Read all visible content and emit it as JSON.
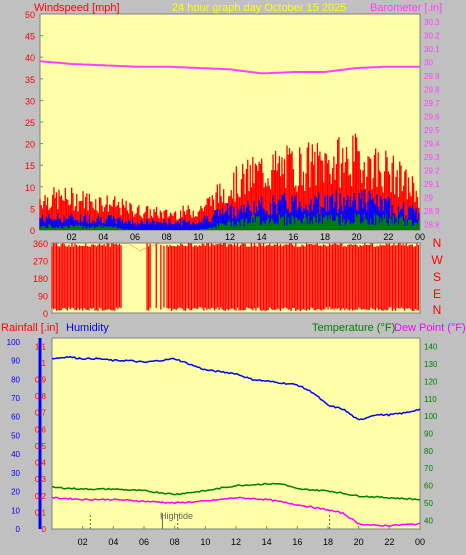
{
  "header": {
    "windspeed_label": "Windspeed [mph]",
    "graph_title": "24 hour graph day   October 15 2025",
    "barometer_label": "Barometer [.in]"
  },
  "compass": [
    "N",
    "W",
    "S",
    "E",
    "N"
  ],
  "lower_header": {
    "rainfall_label": "Rainfall [.in]",
    "humidity_label": "Humidity",
    "temperature_label": "Temperature (°F)",
    "dewpoint_label": "Dew Point (°F)"
  },
  "annotation": {
    "hightide_label": "Hightide"
  },
  "colors": {
    "background": "#c0c0c0",
    "plot_bg": "#ffffa8",
    "wind_gust": "#ff0000",
    "wind_avg": "#0000ff",
    "wind_min": "#008000",
    "barometer": "#ff40ff",
    "direction": "#ff0000",
    "humidity": "#0000ff",
    "temperature": "#008000",
    "dewpoint": "#ff00ff",
    "title": "#ffff00"
  },
  "chart_data": [
    {
      "type": "line",
      "x_ticks": [
        "02",
        "04",
        "06",
        "08",
        "10",
        "12",
        "14",
        "16",
        "18",
        "20",
        "22",
        "00"
      ],
      "y_left_ticks": [
        "0",
        "5",
        "10",
        "15",
        "20",
        "25",
        "30",
        "35",
        "40",
        "45",
        "50"
      ],
      "y_right_ticks": [
        "28.8",
        "28.9",
        "29",
        "29.1",
        "29.2",
        "29.3",
        "29.4",
        "29.5",
        "29.6",
        "29.7",
        "29.8",
        "29.9",
        "30",
        "30.1",
        "30.2",
        "30.3"
      ],
      "ylim_left": [
        0,
        50
      ],
      "ylim_right": [
        28.75,
        30.35
      ],
      "series": [
        {
          "name": "Barometer [.in]",
          "axis": "right",
          "x": [
            0,
            2,
            4,
            6,
            8,
            10,
            12,
            14,
            16,
            18,
            20,
            22,
            24
          ],
          "values": [
            30.0,
            29.98,
            29.97,
            29.96,
            29.96,
            29.95,
            29.94,
            29.91,
            29.92,
            29.92,
            29.95,
            29.96,
            29.96
          ]
        },
        {
          "axis": "left",
          "role": "gust",
          "x": [
            0,
            2,
            4,
            6,
            8,
            10,
            11,
            12,
            14,
            16,
            18,
            20,
            22,
            24
          ],
          "values": [
            8,
            8,
            7,
            5,
            4,
            5,
            8,
            11,
            15,
            16,
            17,
            18,
            15,
            9
          ]
        },
        {
          "axis": "left",
          "role": "avg",
          "x": [
            0,
            2,
            4,
            6,
            8,
            10,
            11,
            12,
            14,
            16,
            18,
            20,
            22,
            24
          ],
          "values": [
            3,
            3,
            3,
            2,
            2,
            2,
            4,
            5,
            6,
            7,
            7,
            8,
            6,
            4
          ]
        },
        {
          "axis": "left",
          "role": "min",
          "x": [
            0,
            2,
            4,
            6,
            8,
            10,
            11,
            12,
            14,
            16,
            18,
            20,
            22,
            24
          ],
          "values": [
            1,
            1,
            1,
            0,
            0,
            0,
            1,
            2,
            3,
            3,
            3,
            3,
            3,
            2
          ]
        }
      ]
    },
    {
      "type": "bar",
      "y_ticks": [
        "0",
        "90",
        "180",
        "270",
        "360"
      ],
      "ylim": [
        0,
        360
      ],
      "series": [
        {
          "name": "Wind direction",
          "x": [
            0,
            1,
            2,
            3,
            4,
            5,
            5.7,
            6.3,
            7,
            8,
            9,
            10,
            11,
            12,
            13,
            14,
            15,
            16,
            17,
            18,
            19,
            20,
            21,
            22,
            23,
            24
          ],
          "values": [
            360,
            360,
            360,
            360,
            360,
            360,
            320,
            340,
            360,
            360,
            360,
            360,
            360,
            360,
            360,
            360,
            360,
            360,
            360,
            360,
            360,
            360,
            360,
            360,
            360,
            360
          ]
        }
      ]
    },
    {
      "type": "line",
      "x_ticks": [
        "02",
        "04",
        "06",
        "08",
        "10",
        "12",
        "14",
        "16",
        "18",
        "20",
        "22",
        "00"
      ],
      "y_humidity_ticks": [
        "0",
        "10",
        "20",
        "30",
        "40",
        "50",
        "60",
        "70",
        "80",
        "90",
        "100"
      ],
      "y_rain_ticks": [
        "0",
        "0.1",
        "0.2",
        "0.3",
        "0.4",
        "0.5",
        "0.6",
        "0.7",
        "0.8",
        "0.9",
        "1",
        "1.1"
      ],
      "y_temp_ticks": [
        "40",
        "50",
        "60",
        "70",
        "80",
        "90",
        "100",
        "110",
        "120",
        "130",
        "140"
      ],
      "ylim_humidity": [
        0,
        100
      ],
      "ylim_temp": [
        35,
        145
      ],
      "series": [
        {
          "name": "Humidity",
          "axis": "humidity",
          "x": [
            0,
            1,
            2,
            3,
            4,
            5,
            6,
            7,
            8,
            9,
            10,
            11,
            12,
            13,
            14,
            15,
            16,
            17,
            18,
            19,
            20,
            21,
            22,
            23,
            24
          ],
          "values": [
            91,
            92,
            91,
            91,
            90,
            90,
            89,
            90,
            91,
            88,
            85,
            84,
            83,
            80,
            79,
            78,
            77,
            73,
            66,
            64,
            58,
            61,
            61,
            62,
            64
          ]
        },
        {
          "name": "Temperature (°F)",
          "axis": "temp",
          "x": [
            0,
            2,
            4,
            6,
            8,
            10,
            12,
            14,
            15,
            16,
            18,
            20,
            22,
            24
          ],
          "values": [
            59,
            58,
            58,
            57,
            55,
            57,
            60,
            61,
            61,
            58,
            57,
            54,
            53,
            52
          ]
        },
        {
          "name": "Dew Point (°F)",
          "axis": "temp",
          "x": [
            0,
            2,
            4,
            6,
            8,
            10,
            12,
            14,
            16,
            18,
            19,
            20,
            21,
            22,
            24
          ],
          "values": [
            53,
            52,
            52,
            51,
            50,
            51,
            53,
            52,
            49,
            46,
            44,
            38,
            37,
            37,
            38
          ]
        }
      ]
    }
  ]
}
